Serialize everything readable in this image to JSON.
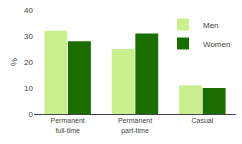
{
  "chart_data": {
    "type": "bar",
    "categories": [
      "Permanent\nfull-time",
      "Permanent\npart-time",
      "Casual"
    ],
    "series": [
      {
        "name": "Men",
        "color": "#c8f08c",
        "values": [
          32,
          25,
          11
        ]
      },
      {
        "name": "Women",
        "color": "#1a6e00",
        "values": [
          28,
          31,
          10
        ]
      }
    ],
    "ylabel": "%",
    "ylim": [
      0,
      40
    ],
    "yticks": [
      0,
      10,
      20,
      30,
      40
    ],
    "grid": false,
    "legend": "upper right"
  }
}
